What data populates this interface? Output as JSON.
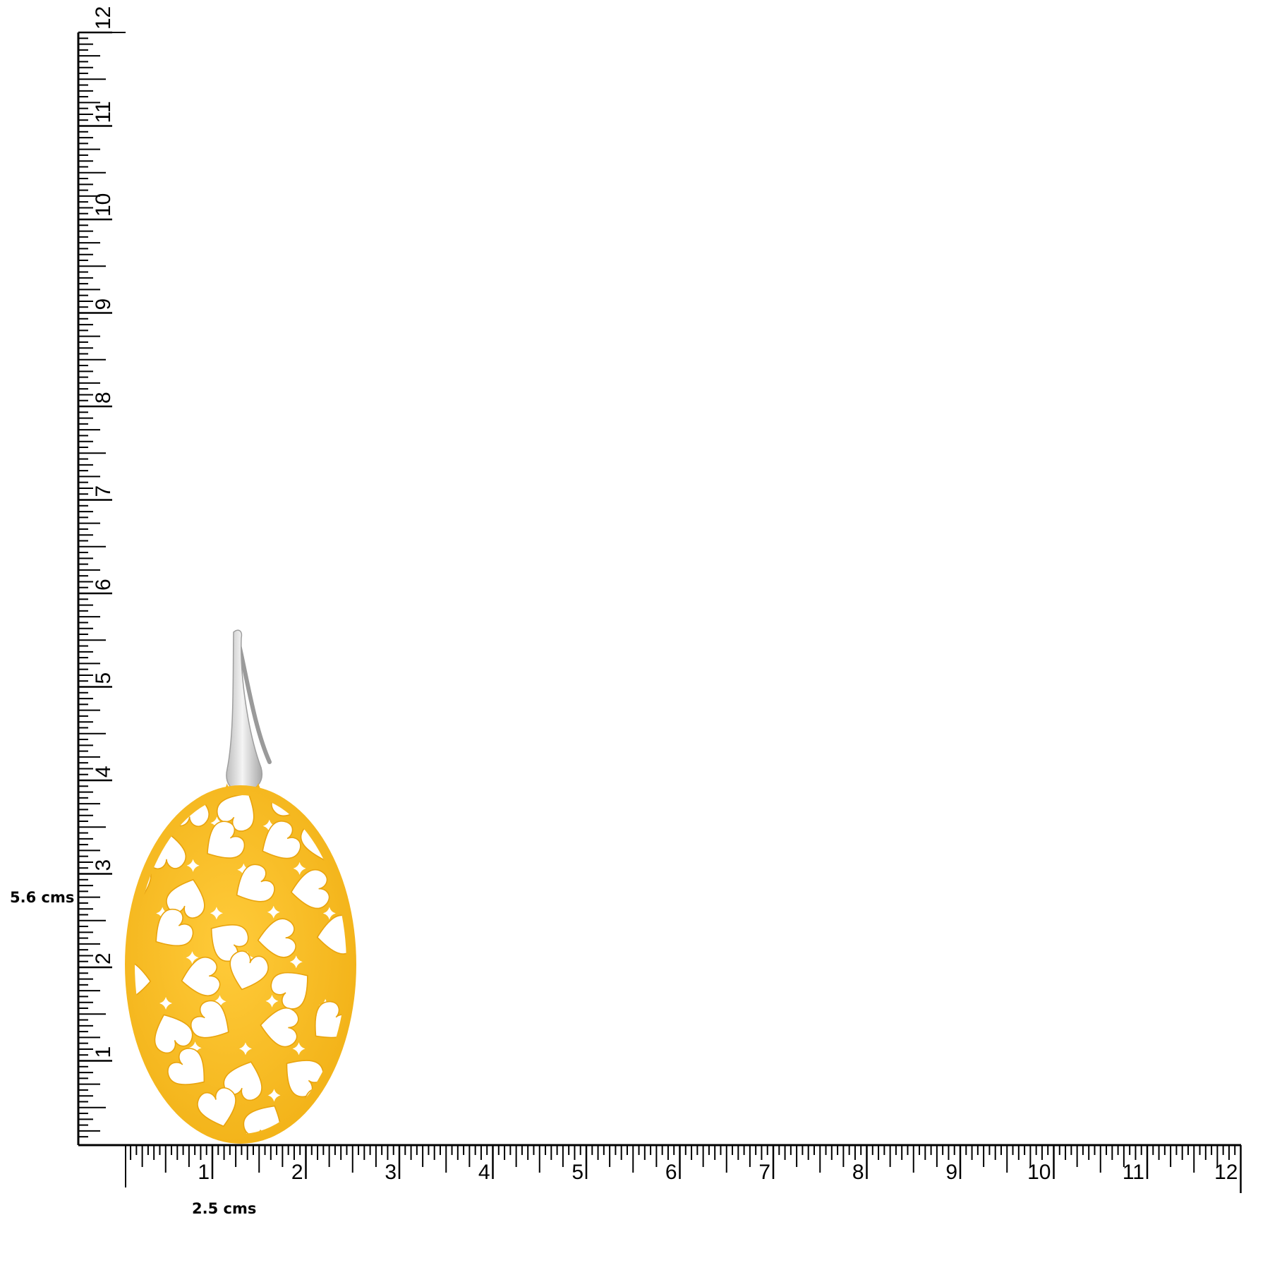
{
  "dimensions": {
    "height_label": "5.6 cms",
    "width_label": "2.5 cms"
  },
  "ruler": {
    "vertical_labels": [
      "1",
      "2",
      "3",
      "4",
      "5",
      "6",
      "7",
      "8",
      "9",
      "10",
      "11",
      "12"
    ],
    "horizontal_labels": [
      "1",
      "2",
      "3",
      "4",
      "5",
      "6",
      "7",
      "8",
      "9",
      "10",
      "11",
      "12"
    ],
    "subdivisions_per_unit": 16,
    "color": "#000000"
  },
  "product": {
    "pendant_color": "#F6B81C",
    "pendant_highlight": "#FFD24A",
    "hook_color": "#D9D9D9",
    "pattern": "heart-cutouts"
  }
}
